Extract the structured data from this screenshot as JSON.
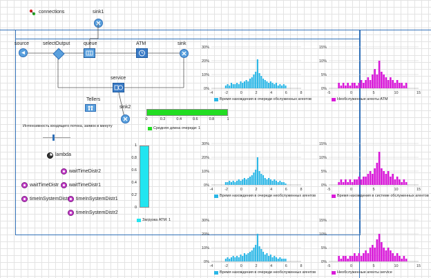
{
  "top": {
    "connections_label": "connections",
    "sink1_label": "sink1"
  },
  "flow": {
    "source_label": "source",
    "select_output_label": "selectOutput",
    "queue_label": "queue",
    "atm_label": "ATM",
    "sink_label": "sink",
    "service_label": "service",
    "tellers_label": "Tellers",
    "sink2_label": "sink2"
  },
  "controls": {
    "slider_title": "Интенсивность входящего потока, заявок в минуту",
    "lambda_label": "lambda"
  },
  "functions": {
    "items": [
      "waitTimeDistr2",
      "waitTimeDistr",
      "waitTimeDistr1",
      "timeInSystemDistr",
      "timeInSystemDistr1",
      "timeInSystemDistr2"
    ]
  },
  "bar_chart": {
    "ticks": [
      "0",
      "0.2",
      "0.4",
      "0.6",
      "0.8",
      "1"
    ],
    "legend": "Средняя длина очереди: 1",
    "value": 1,
    "color": "#22dd22"
  },
  "vbar_chart": {
    "ticks": [
      "1",
      "0.8",
      "0.6",
      "0.4",
      "0.2",
      "0"
    ],
    "legend": "Загрузка ATM: 1",
    "value": 1,
    "color": "#22e5f0"
  },
  "colors": {
    "cyan": "#29b6e6",
    "magenta": "#d91ad9",
    "frame": "#2f6fb7"
  },
  "chart_data": [
    {
      "type": "bar",
      "title": "",
      "legend": "Время нахождения в очереди обслуженных агентов",
      "x_ticks": [
        "-4",
        "-2",
        "0",
        "2",
        "4",
        "6",
        "8"
      ],
      "y_ticks": [
        "0%",
        "10%",
        "20%",
        "30%"
      ],
      "ylim": [
        0,
        0.3
      ],
      "xlim": [
        -4,
        8
      ],
      "bin_start": -2.2,
      "bin_width": 0.25,
      "values": [
        0.02,
        0.03,
        0.02,
        0.04,
        0.03,
        0.03,
        0.04,
        0.03,
        0.05,
        0.04,
        0.05,
        0.06,
        0.05,
        0.07,
        0.08,
        0.1,
        0.12,
        0.21,
        0.11,
        0.09,
        0.07,
        0.06,
        0.05,
        0.04,
        0.05,
        0.04,
        0.03,
        0.04,
        0.02,
        0.03,
        0.02,
        0.03,
        0.02
      ],
      "color": "#29b6e6"
    },
    {
      "type": "bar",
      "title": "",
      "legend": "Необслуженные агенты ATM",
      "x_ticks": [
        "-5",
        "0",
        "5",
        "10",
        "15"
      ],
      "y_ticks": [
        "0%",
        "5%",
        "10%",
        "15%"
      ],
      "ylim": [
        0,
        0.15
      ],
      "xlim": [
        -5,
        15
      ],
      "bin_start": -3,
      "bin_width": 0.5,
      "values": [
        0.02,
        0.01,
        0.02,
        0.01,
        0.02,
        0.01,
        0.02,
        0.02,
        0.01,
        0.02,
        0.03,
        0.02,
        0.03,
        0.04,
        0.03,
        0.05,
        0.07,
        0.05,
        0.1,
        0.06,
        0.05,
        0.04,
        0.03,
        0.04,
        0.03,
        0.02,
        0.03,
        0.02,
        0.02,
        0.01,
        0.02
      ],
      "color": "#d91ad9"
    },
    {
      "type": "bar",
      "title": "",
      "legend": "Время нахождения в очереди необслуженных агентов",
      "x_ticks": [
        "-4",
        "-2",
        "0",
        "2",
        "4",
        "6",
        "8"
      ],
      "y_ticks": [
        "0%",
        "10%",
        "20%",
        "30%"
      ],
      "ylim": [
        0,
        0.3
      ],
      "xlim": [
        -4,
        8
      ],
      "bin_start": -2.2,
      "bin_width": 0.25,
      "values": [
        0.02,
        0.02,
        0.03,
        0.02,
        0.03,
        0.02,
        0.03,
        0.04,
        0.03,
        0.04,
        0.05,
        0.04,
        0.05,
        0.06,
        0.07,
        0.09,
        0.11,
        0.2,
        0.1,
        0.08,
        0.07,
        0.05,
        0.04,
        0.05,
        0.04,
        0.03,
        0.04,
        0.03,
        0.02,
        0.03,
        0.02,
        0.02,
        0.01
      ],
      "color": "#29b6e6"
    },
    {
      "type": "bar",
      "title": "",
      "legend": "Время нахождения в системе обслуженных агентов",
      "x_ticks": [
        "-5",
        "0",
        "5",
        "10",
        "15"
      ],
      "y_ticks": [
        "0%",
        "5%",
        "10%",
        "15%"
      ],
      "ylim": [
        0,
        0.15
      ],
      "xlim": [
        -5,
        15
      ],
      "bin_start": -3,
      "bin_width": 0.5,
      "values": [
        0.01,
        0.02,
        0.01,
        0.02,
        0.01,
        0.02,
        0.01,
        0.02,
        0.02,
        0.03,
        0.02,
        0.03,
        0.03,
        0.04,
        0.05,
        0.04,
        0.06,
        0.08,
        0.12,
        0.06,
        0.05,
        0.04,
        0.05,
        0.03,
        0.04,
        0.02,
        0.03,
        0.02,
        0.01,
        0.02,
        0.01
      ],
      "color": "#d91ad9"
    },
    {
      "type": "bar",
      "title": "",
      "legend": "Время нахождения в очереди необслуженных агентов",
      "x_ticks": [
        "-4",
        "-2",
        "0",
        "2",
        "4",
        "6",
        "8"
      ],
      "y_ticks": [
        "0%",
        "10%",
        "20%",
        "30%"
      ],
      "ylim": [
        0,
        0.3
      ],
      "xlim": [
        -4,
        8
      ],
      "bin_start": -2.2,
      "bin_width": 0.25,
      "values": [
        0.02,
        0.03,
        0.02,
        0.03,
        0.04,
        0.03,
        0.04,
        0.03,
        0.05,
        0.04,
        0.06,
        0.05,
        0.06,
        0.07,
        0.08,
        0.1,
        0.12,
        0.2,
        0.11,
        0.09,
        0.07,
        0.05,
        0.06,
        0.04,
        0.05,
        0.03,
        0.04,
        0.03,
        0.02,
        0.03,
        0.02,
        0.02,
        0.02
      ],
      "color": "#29b6e6"
    },
    {
      "type": "bar",
      "title": "",
      "legend": "Необслуженные агенты service",
      "x_ticks": [
        "-5",
        "0",
        "5",
        "10",
        "15"
      ],
      "y_ticks": [
        "0%",
        "5%",
        "10%",
        "15%"
      ],
      "ylim": [
        0,
        0.15
      ],
      "xlim": [
        -5,
        15
      ],
      "bin_start": -3,
      "bin_width": 0.5,
      "values": [
        0.02,
        0.01,
        0.02,
        0.02,
        0.01,
        0.02,
        0.02,
        0.03,
        0.02,
        0.03,
        0.02,
        0.03,
        0.04,
        0.03,
        0.05,
        0.06,
        0.05,
        0.08,
        0.1,
        0.07,
        0.05,
        0.04,
        0.05,
        0.04,
        0.03,
        0.02,
        0.03,
        0.02,
        0.01,
        0.02,
        0.01
      ],
      "color": "#d91ad9"
    }
  ]
}
